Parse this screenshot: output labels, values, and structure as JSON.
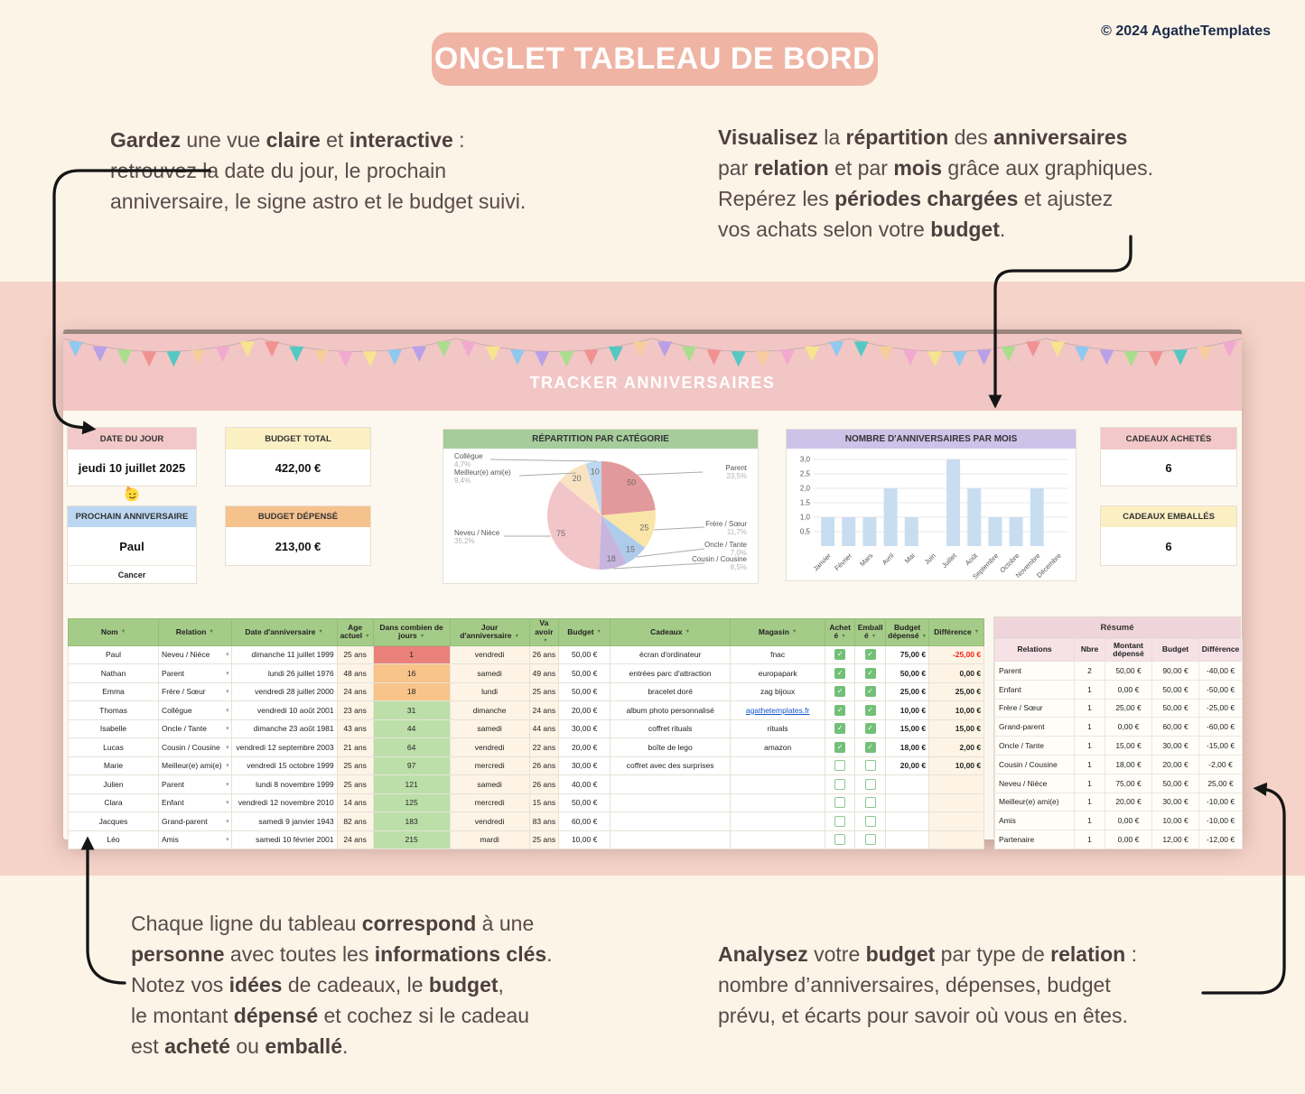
{
  "page": {
    "badge": "ONGLET TABLEAU DE BORD",
    "copyright": "© 2024 AgatheTemplates",
    "colors": {
      "badge_bg": "#EFB4A4",
      "band_pink": "#F5D3C9",
      "page_cream": "#FBF4E7"
    }
  },
  "annotations": {
    "top_left": [
      {
        "t": "Gardez",
        "b": 1
      },
      {
        "t": " une vue "
      },
      {
        "t": "claire",
        "b": 1
      },
      {
        "t": " et "
      },
      {
        "t": "interactive",
        "b": 1
      },
      {
        "t": " :\nretrouvez la date du jour, le prochain\nanniversaire, le signe astro et le budget suivi."
      }
    ],
    "top_right": [
      {
        "t": "Visualisez",
        "b": 1
      },
      {
        "t": " la "
      },
      {
        "t": "répartition",
        "b": 1
      },
      {
        "t": " des "
      },
      {
        "t": "anniversaires",
        "b": 1
      },
      {
        "t": "\npar "
      },
      {
        "t": "relation",
        "b": 1
      },
      {
        "t": " et par "
      },
      {
        "t": "mois",
        "b": 1
      },
      {
        "t": " grâce aux graphiques.\nRepérez les "
      },
      {
        "t": "périodes chargées",
        "b": 1
      },
      {
        "t": " et ajustez\nvos achats selon votre "
      },
      {
        "t": "budget",
        "b": 1
      },
      {
        "t": "."
      }
    ],
    "bottom_left": [
      {
        "t": "Chaque ligne du tableau "
      },
      {
        "t": "correspond",
        "b": 1
      },
      {
        "t": " à une\n"
      },
      {
        "t": "personne",
        "b": 1
      },
      {
        "t": " avec toutes les "
      },
      {
        "t": "informations clés",
        "b": 1
      },
      {
        "t": ".\nNotez vos "
      },
      {
        "t": "idées",
        "b": 1
      },
      {
        "t": " de cadeaux, le "
      },
      {
        "t": "budget",
        "b": 1
      },
      {
        "t": ",\nle montant "
      },
      {
        "t": "dépensé",
        "b": 1
      },
      {
        "t": " et cochez si le cadeau\nest "
      },
      {
        "t": "acheté",
        "b": 1
      },
      {
        "t": " ou "
      },
      {
        "t": "emballé",
        "b": 1
      },
      {
        "t": "."
      }
    ],
    "bottom_right": [
      {
        "t": "Analysez",
        "b": 1
      },
      {
        "t": " votre "
      },
      {
        "t": "budget",
        "b": 1
      },
      {
        "t": " par type de "
      },
      {
        "t": "relation",
        "b": 1
      },
      {
        "t": " :\nnombre d’anniversaires, dépenses, budget\nprévu, et écarts pour savoir où vous en êtes."
      }
    ]
  },
  "sheet": {
    "banner_title": "TRACKER ANNIVERSAIRES",
    "bunting_colors": [
      "#8FC9EF",
      "#B9A0E6",
      "#A9DE8C",
      "#F19292",
      "#55C8C2",
      "#F7CD9E",
      "#F2A9CF",
      "#F6E48E"
    ],
    "emoji": "party-face",
    "cards": {
      "date": {
        "label": "DATE DU JOUR",
        "value": "jeudi 10 juillet 2025"
      },
      "budget_total": {
        "label": "BUDGET TOTAL",
        "value": "422,00 €"
      },
      "next_birthday": {
        "label": "PROCHAIN ANNIVERSAIRE",
        "value": "Paul",
        "zodiac": "Cancer"
      },
      "budget_spent": {
        "label": "BUDGET DÉPENSÉ",
        "value": "213,00 €"
      },
      "gifts_bought": {
        "label": "CADEAUX ACHETÉS",
        "value": "6"
      },
      "gifts_wrapped": {
        "label": "CADEAUX EMBALLÉS",
        "value": "6"
      }
    },
    "table": {
      "headers": [
        "Nom",
        "Relation",
        "Date d'anniversaire",
        "Age actuel",
        "Dans combien de jours",
        "Jour d'anniversaire",
        "Va avoir",
        "Budget",
        "Cadeaux",
        "Magasin",
        "Acheté",
        "Emballé",
        "Budget dépensé",
        "Différence"
      ],
      "rows": [
        {
          "nom": "Paul",
          "relation": "Neveu / Nièce",
          "date": "dimanche 11 juillet 1999",
          "age": "25 ans",
          "jours": "1",
          "jours_color": "#E9807A",
          "jour": "vendredi",
          "va": "26 ans",
          "budget": "50,00 €",
          "cadeau": "écran d'ordinateur",
          "magasin": "fnac",
          "magasin_is_link": false,
          "achete": true,
          "emballe": true,
          "depense": "75,00 €",
          "difference": "-25,00 €"
        },
        {
          "nom": "Nathan",
          "relation": "Parent",
          "date": "lundi 26 juillet 1976",
          "age": "48 ans",
          "jours": "16",
          "jours_color": "#F8C489",
          "jour": "samedi",
          "va": "49 ans",
          "budget": "50,00 €",
          "cadeau": "entrées parc d'attraction",
          "magasin": "europapark",
          "magasin_is_link": false,
          "achete": true,
          "emballe": true,
          "depense": "50,00 €",
          "difference": "0,00 €"
        },
        {
          "nom": "Emma",
          "relation": "Frère / Sœur",
          "date": "vendredi 28 juillet 2000",
          "age": "24 ans",
          "jours": "18",
          "jours_color": "#F8C489",
          "jour": "lundi",
          "va": "25 ans",
          "budget": "50,00 €",
          "cadeau": "bracelet doré",
          "magasin": "zag bijoux",
          "magasin_is_link": false,
          "achete": true,
          "emballe": true,
          "depense": "25,00 €",
          "difference": "25,00 €"
        },
        {
          "nom": "Thomas",
          "relation": "Collègue",
          "date": "vendredi 10 août 2001",
          "age": "23 ans",
          "jours": "31",
          "jours_color": "#BCDFA9",
          "jour": "dimanche",
          "va": "24 ans",
          "budget": "20,00 €",
          "cadeau": "album photo personnalisé",
          "magasin": "agathetemplates.fr",
          "magasin_is_link": true,
          "achete": true,
          "emballe": true,
          "depense": "10,00 €",
          "difference": "10,00 €"
        },
        {
          "nom": "Isabelle",
          "relation": "Oncle / Tante",
          "date": "dimanche 23 août 1981",
          "age": "43 ans",
          "jours": "44",
          "jours_color": "#BCDFA9",
          "jour": "samedi",
          "va": "44 ans",
          "budget": "30,00 €",
          "cadeau": "coffret rituals",
          "magasin": "rituals",
          "magasin_is_link": false,
          "achete": true,
          "emballe": true,
          "depense": "15,00 €",
          "difference": "15,00 €"
        },
        {
          "nom": "Lucas",
          "relation": "Cousin / Cousine",
          "date": "vendredi 12 septembre 2003",
          "age": "21 ans",
          "jours": "64",
          "jours_color": "#BCDFA9",
          "jour": "vendredi",
          "va": "22 ans",
          "budget": "20,00 €",
          "cadeau": "boîte de lego",
          "magasin": "amazon",
          "magasin_is_link": false,
          "achete": true,
          "emballe": true,
          "depense": "18,00 €",
          "difference": "2,00 €"
        },
        {
          "nom": "Marie",
          "relation": "Meilleur(e) ami(e)",
          "date": "vendredi 15 octobre 1999",
          "age": "25 ans",
          "jours": "97",
          "jours_color": "#BCDFA9",
          "jour": "mercredi",
          "va": "26 ans",
          "budget": "30,00 €",
          "cadeau": "coffret avec des surprises",
          "magasin": "",
          "magasin_is_link": false,
          "achete": false,
          "emballe": false,
          "depense": "20,00 €",
          "difference": "10,00 €"
        },
        {
          "nom": "Julien",
          "relation": "Parent",
          "date": "lundi 8 novembre 1999",
          "age": "25 ans",
          "jours": "121",
          "jours_color": "#BCDFA9",
          "jour": "samedi",
          "va": "26 ans",
          "budget": "40,00 €",
          "cadeau": "",
          "magasin": "",
          "magasin_is_link": false,
          "achete": false,
          "emballe": false,
          "depense": "",
          "difference": ""
        },
        {
          "nom": "Clara",
          "relation": "Enfant",
          "date": "vendredi 12 novembre 2010",
          "age": "14 ans",
          "jours": "125",
          "jours_color": "#BCDFA9",
          "jour": "mercredi",
          "va": "15 ans",
          "budget": "50,00 €",
          "cadeau": "",
          "magasin": "",
          "magasin_is_link": false,
          "achete": false,
          "emballe": false,
          "depense": "",
          "difference": ""
        },
        {
          "nom": "Jacques",
          "relation": "Grand-parent",
          "date": "samedi 9 janvier 1943",
          "age": "82 ans",
          "jours": "183",
          "jours_color": "#BCDFA9",
          "jour": "vendredi",
          "va": "83 ans",
          "budget": "60,00 €",
          "cadeau": "",
          "magasin": "",
          "magasin_is_link": false,
          "achete": false,
          "emballe": false,
          "depense": "",
          "difference": ""
        },
        {
          "nom": "Léo",
          "relation": "Amis",
          "date": "samedi 10 février 2001",
          "age": "24 ans",
          "jours": "215",
          "jours_color": "#BCDFA9",
          "jour": "mardi",
          "va": "25 ans",
          "budget": "10,00 €",
          "cadeau": "",
          "magasin": "",
          "magasin_is_link": false,
          "achete": false,
          "emballe": false,
          "depense": "",
          "difference": ""
        }
      ]
    },
    "resume": {
      "title": "Résumé",
      "headers": [
        "Relations",
        "Nbre",
        "Montant dépensé",
        "Budget",
        "Différence"
      ],
      "rows": [
        [
          "Parent",
          "2",
          "50,00 €",
          "90,00 €",
          "-40,00 €"
        ],
        [
          "Enfant",
          "1",
          "0,00 €",
          "50,00 €",
          "-50,00 €"
        ],
        [
          "Frère / Sœur",
          "1",
          "25,00 €",
          "50,00 €",
          "-25,00 €"
        ],
        [
          "Grand-parent",
          "1",
          "0,00 €",
          "60,00 €",
          "-60,00 €"
        ],
        [
          "Oncle / Tante",
          "1",
          "15,00 €",
          "30,00 €",
          "-15,00 €"
        ],
        [
          "Cousin / Cousine",
          "1",
          "18,00 €",
          "20,00 €",
          "-2,00 €"
        ],
        [
          "Neveu / Nièce",
          "1",
          "75,00 €",
          "50,00 €",
          "25,00 €"
        ],
        [
          "Meilleur(e) ami(e)",
          "1",
          "20,00 €",
          "30,00 €",
          "-10,00 €"
        ],
        [
          "Amis",
          "1",
          "0,00 €",
          "10,00 €",
          "-10,00 €"
        ],
        [
          "Partenaire",
          "1",
          "0,00 €",
          "12,00 €",
          "-12,00 €"
        ]
      ]
    }
  },
  "chart_data": [
    {
      "type": "pie",
      "title": "RÉPARTITION PAR CATÉGORIE",
      "labels": [
        "Parent",
        "Frère / Sœur",
        "Oncle / Tante",
        "Cousin / Cousine",
        "Neveu / Nièce",
        "Meilleur(e) ami(e)",
        "Collègue"
      ],
      "values": [
        50,
        25,
        15,
        18,
        75,
        20,
        10
      ],
      "percents": [
        "23,5%",
        "11,7%",
        "7,0%",
        "8,5%",
        "35,2%",
        "9,4%",
        "4,7%"
      ],
      "colors": [
        "#E2999B",
        "#FAE5A8",
        "#AECBEB",
        "#C6B6DD",
        "#F2C5C9",
        "#FAE3C3",
        "#BDD7F0"
      ],
      "legend_position": "callouts",
      "header_color": "#A6CC9C"
    },
    {
      "type": "bar",
      "title": "NOMBRE D'ANNIVERSAIRES PAR MOIS",
      "categories": [
        "Janvier",
        "Février",
        "Mars",
        "Avril",
        "Mai",
        "Juin",
        "Juillet",
        "Août",
        "Septembre",
        "Octobre",
        "Novembre",
        "Décembre"
      ],
      "values": [
        1,
        1,
        1,
        2,
        1,
        0,
        3,
        2,
        1,
        1,
        2,
        0
      ],
      "ylim": [
        0,
        3
      ],
      "yticks": [
        "0,5",
        "1,0",
        "1,5",
        "2,0",
        "2,5",
        "3,0"
      ],
      "grid": true,
      "bar_color": "#C9DDF1",
      "header_color": "#CDC2E8",
      "xlabel": "",
      "ylabel": ""
    }
  ]
}
